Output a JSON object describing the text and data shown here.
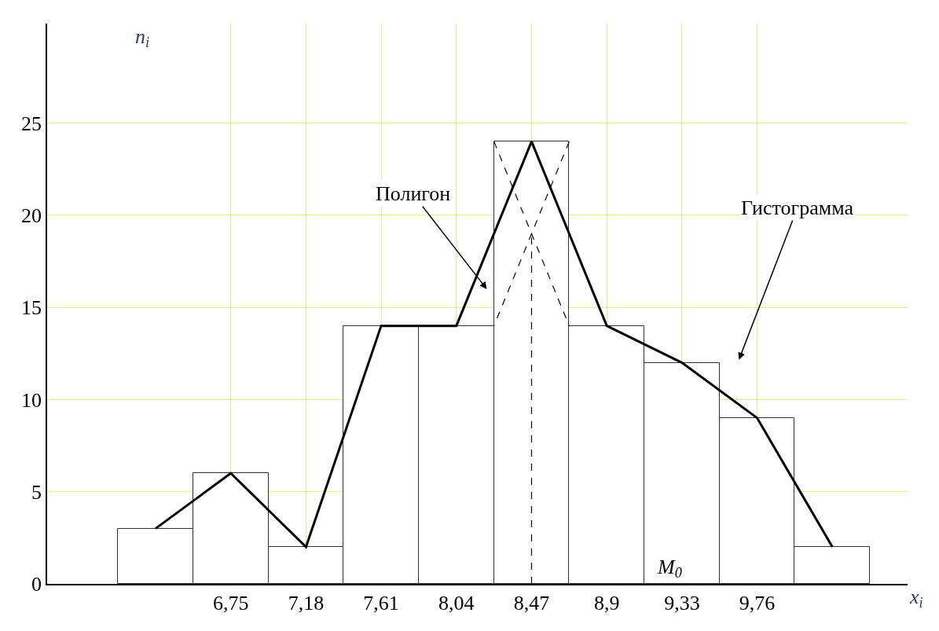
{
  "chart_data": {
    "type": "histogram",
    "bins": [
      6.105,
      6.535,
      6.965,
      7.395,
      7.825,
      8.255,
      8.685,
      9.115,
      9.545,
      9.975,
      10.405
    ],
    "values": [
      3,
      6,
      2,
      14,
      14,
      24,
      14,
      12,
      9,
      2
    ],
    "color": "#ffffff",
    "series": [
      {
        "type": "line",
        "color": "#000000",
        "line_style": "solid",
        "x": [
          6.32,
          6.75,
          7.18,
          7.61,
          8.04,
          8.47,
          8.9,
          9.33,
          9.76,
          10.19
        ],
        "values": [
          3,
          6,
          2,
          14,
          14,
          24,
          14,
          12,
          9,
          2
        ]
      },
      {
        "type": "line",
        "color": "#000000",
        "line_style": "dashed",
        "x": [
          8.255,
          8.685
        ],
        "values": [
          24,
          14
        ]
      },
      {
        "type": "line",
        "color": "#000000",
        "line_style": "dashed",
        "x": [
          8.685,
          8.255
        ],
        "values": [
          24,
          14
        ]
      },
      {
        "type": "line",
        "color": "#000000",
        "line_style": "dashed",
        "x": [
          8.47,
          8.47
        ],
        "values": [
          0,
          19
        ]
      }
    ],
    "xlabel": "x$_{i}$",
    "ylabel": "n$_{i}$",
    "xlim": [
      5.7,
      10.62
    ],
    "ylim": [
      0,
      30.4
    ],
    "xticks": [
      {
        "value": 6.75,
        "label": "6,75"
      },
      {
        "value": 7.18,
        "label": "7,18"
      },
      {
        "value": 7.61,
        "label": "7,61"
      },
      {
        "value": 8.04,
        "label": "8,04"
      },
      {
        "value": 8.47,
        "label": "8,47"
      },
      {
        "value": 8.9,
        "label": "8,9"
      },
      {
        "value": 9.33,
        "label": "9,33"
      },
      {
        "value": 9.76,
        "label": "9,76"
      }
    ],
    "yticks": [
      0,
      5,
      10,
      15,
      20,
      25
    ],
    "grid": true,
    "annotations": [
      "Полигон",
      "Гистограмма",
      "M$_{0}$"
    ]
  }
}
